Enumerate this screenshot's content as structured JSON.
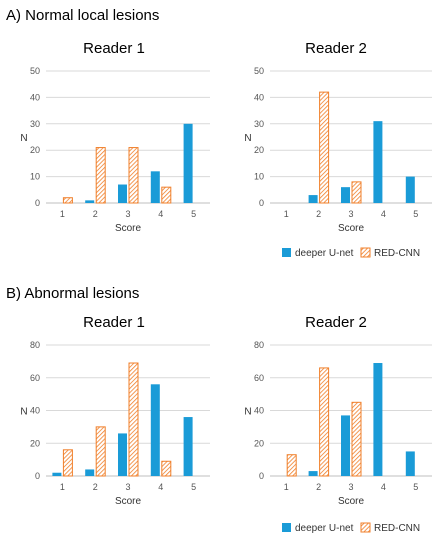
{
  "sections": [
    {
      "title": "A) Normal local lesions"
    },
    {
      "title": "B) Abnormal lesions"
    }
  ],
  "colors": {
    "deeper": "#1a9bd7",
    "red": "#f07f2a",
    "grid": "#d9d9d9",
    "axis": "#bfbfbf"
  },
  "legend": {
    "items": [
      {
        "label": "deeper U-net"
      },
      {
        "label": "RED-CNN"
      }
    ]
  },
  "chart_data": [
    {
      "type": "bar",
      "section": 0,
      "title": "Reader 1",
      "categories": [
        "1",
        "2",
        "3",
        "4",
        "5"
      ],
      "xlabel": "Score",
      "ylabel": "N",
      "ylim": [
        0,
        50
      ],
      "yticks": [
        0,
        10,
        20,
        30,
        40,
        50
      ],
      "series": [
        {
          "name": "deeper U-net",
          "values": [
            0,
            1,
            7,
            12,
            30
          ]
        },
        {
          "name": "RED-CNN",
          "values": [
            2,
            21,
            21,
            6,
            0
          ]
        }
      ]
    },
    {
      "type": "bar",
      "section": 0,
      "title": "Reader 2",
      "categories": [
        "1",
        "2",
        "3",
        "4",
        "5"
      ],
      "xlabel": "Score",
      "ylabel": "N",
      "ylim": [
        0,
        50
      ],
      "yticks": [
        0,
        10,
        20,
        30,
        40,
        50
      ],
      "series": [
        {
          "name": "deeper U-net",
          "values": [
            0,
            3,
            6,
            31,
            10
          ]
        },
        {
          "name": "RED-CNN",
          "values": [
            0,
            42,
            8,
            0,
            0
          ]
        }
      ]
    },
    {
      "type": "bar",
      "section": 1,
      "title": "Reader 1",
      "categories": [
        "1",
        "2",
        "3",
        "4",
        "5"
      ],
      "xlabel": "Score",
      "ylabel": "N",
      "ylim": [
        0,
        80
      ],
      "yticks": [
        0,
        20,
        40,
        60,
        80
      ],
      "series": [
        {
          "name": "deeper U-net",
          "values": [
            2,
            4,
            26,
            56,
            36
          ]
        },
        {
          "name": "RED-CNN",
          "values": [
            16,
            30,
            69,
            9,
            0
          ]
        }
      ]
    },
    {
      "type": "bar",
      "section": 1,
      "title": "Reader 2",
      "categories": [
        "1",
        "2",
        "3",
        "4",
        "5"
      ],
      "xlabel": "Score",
      "ylabel": "N",
      "ylim": [
        0,
        80
      ],
      "yticks": [
        0,
        20,
        40,
        60,
        80
      ],
      "series": [
        {
          "name": "deeper U-net",
          "values": [
            0,
            3,
            37,
            69,
            15
          ]
        },
        {
          "name": "RED-CNN",
          "values": [
            13,
            66,
            45,
            0,
            0
          ]
        }
      ]
    }
  ]
}
